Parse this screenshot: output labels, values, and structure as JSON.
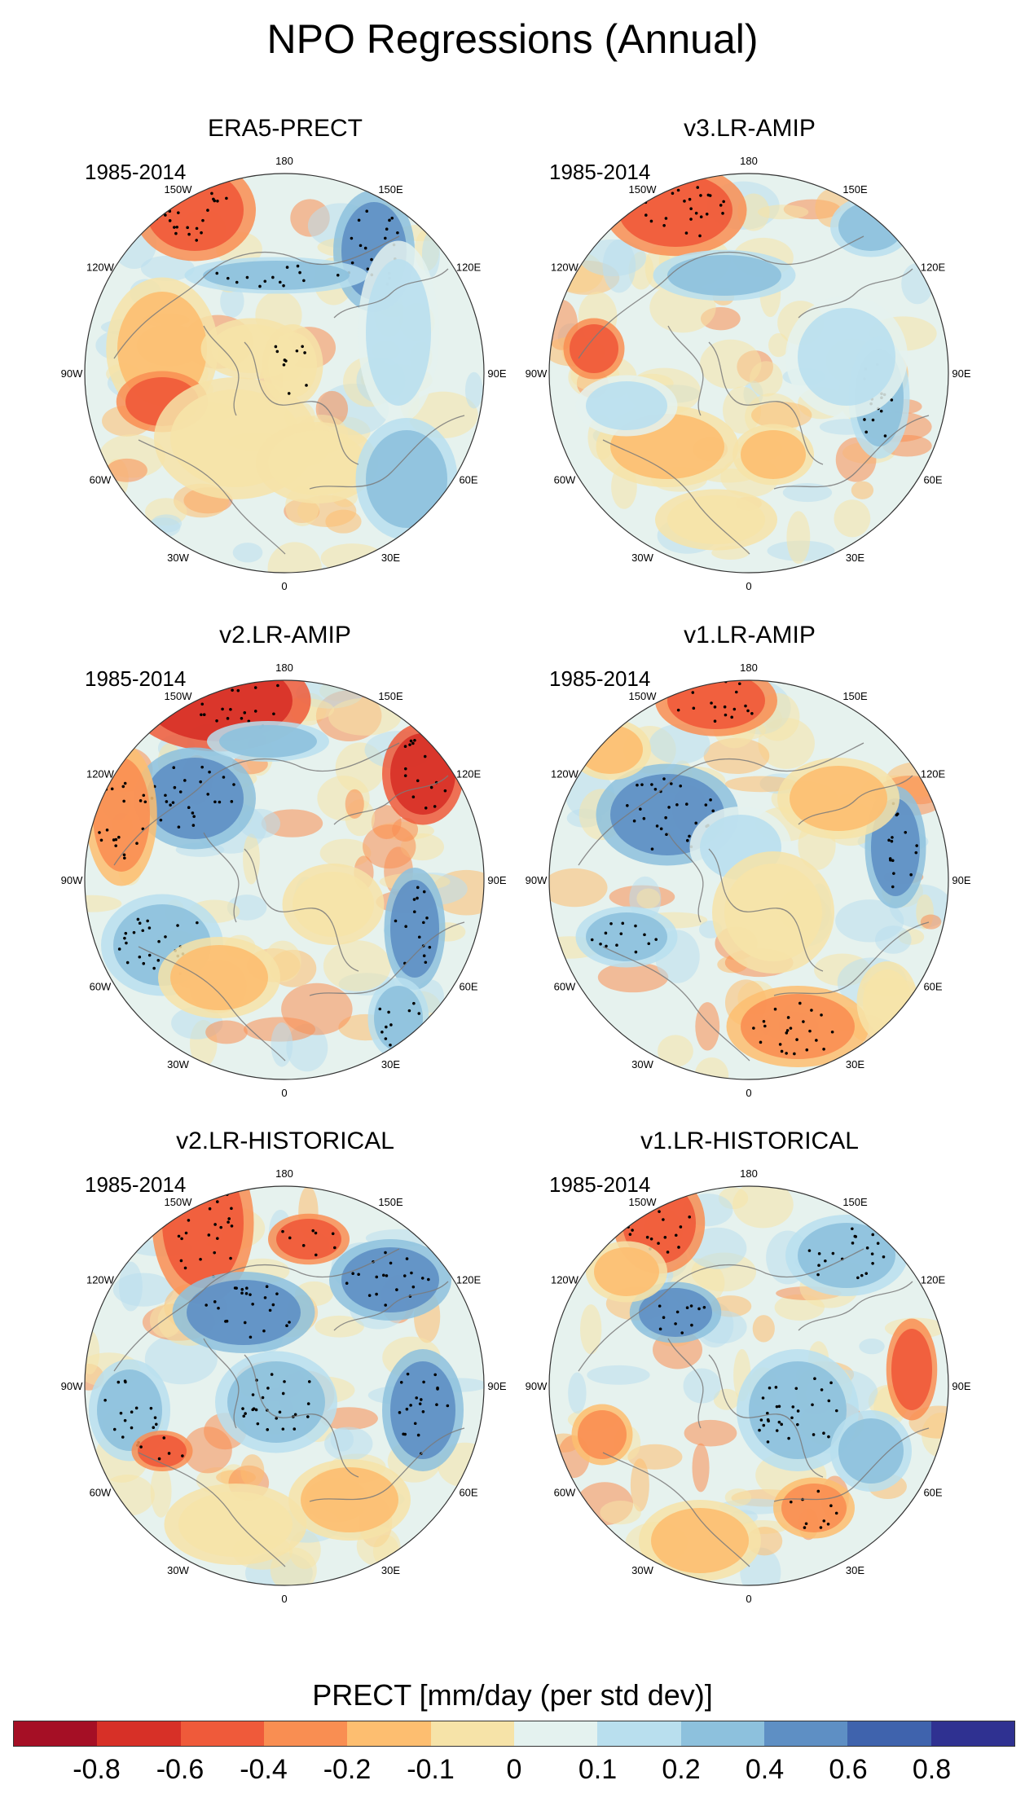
{
  "title": "NPO Regressions (Annual)",
  "panels": [
    {
      "title": "ERA5-PRECT",
      "period": "1985-2014"
    },
    {
      "title": "v3.LR-AMIP",
      "period": "1985-2014"
    },
    {
      "title": "v2.LR-AMIP",
      "period": "1985-2014"
    },
    {
      "title": "v1.LR-AMIP",
      "period": "1985-2014"
    },
    {
      "title": "v2.LR-HISTORICAL",
      "period": "1985-2014"
    },
    {
      "title": "v1.LR-HISTORICAL",
      "period": "1985-2014"
    }
  ],
  "longitude_labels": [
    "180",
    "150E",
    "120E",
    "90E",
    "60E",
    "30E",
    "0",
    "30W",
    "60W",
    "90W",
    "120W",
    "150W"
  ],
  "colorbar": {
    "label": "PRECT [mm/day (per std dev)]",
    "ticks": [
      "-0.8",
      "-0.6",
      "-0.4",
      "-0.2",
      "-0.1",
      "0",
      "0.1",
      "0.2",
      "0.4",
      "0.6",
      "0.8"
    ],
    "colors": [
      "#a50f25",
      "#d73027",
      "#ef5a3a",
      "#f98e52",
      "#fdbe70",
      "#f6e3a8",
      "#e4f2ef",
      "#b9dfee",
      "#8dc1dd",
      "#5e8fc4",
      "#3f63ad",
      "#2f3191"
    ]
  },
  "colors": {
    "ocean_base": "#e6f2ee",
    "land_outline": "#7a7a7a",
    "stipple": "#000000"
  }
}
